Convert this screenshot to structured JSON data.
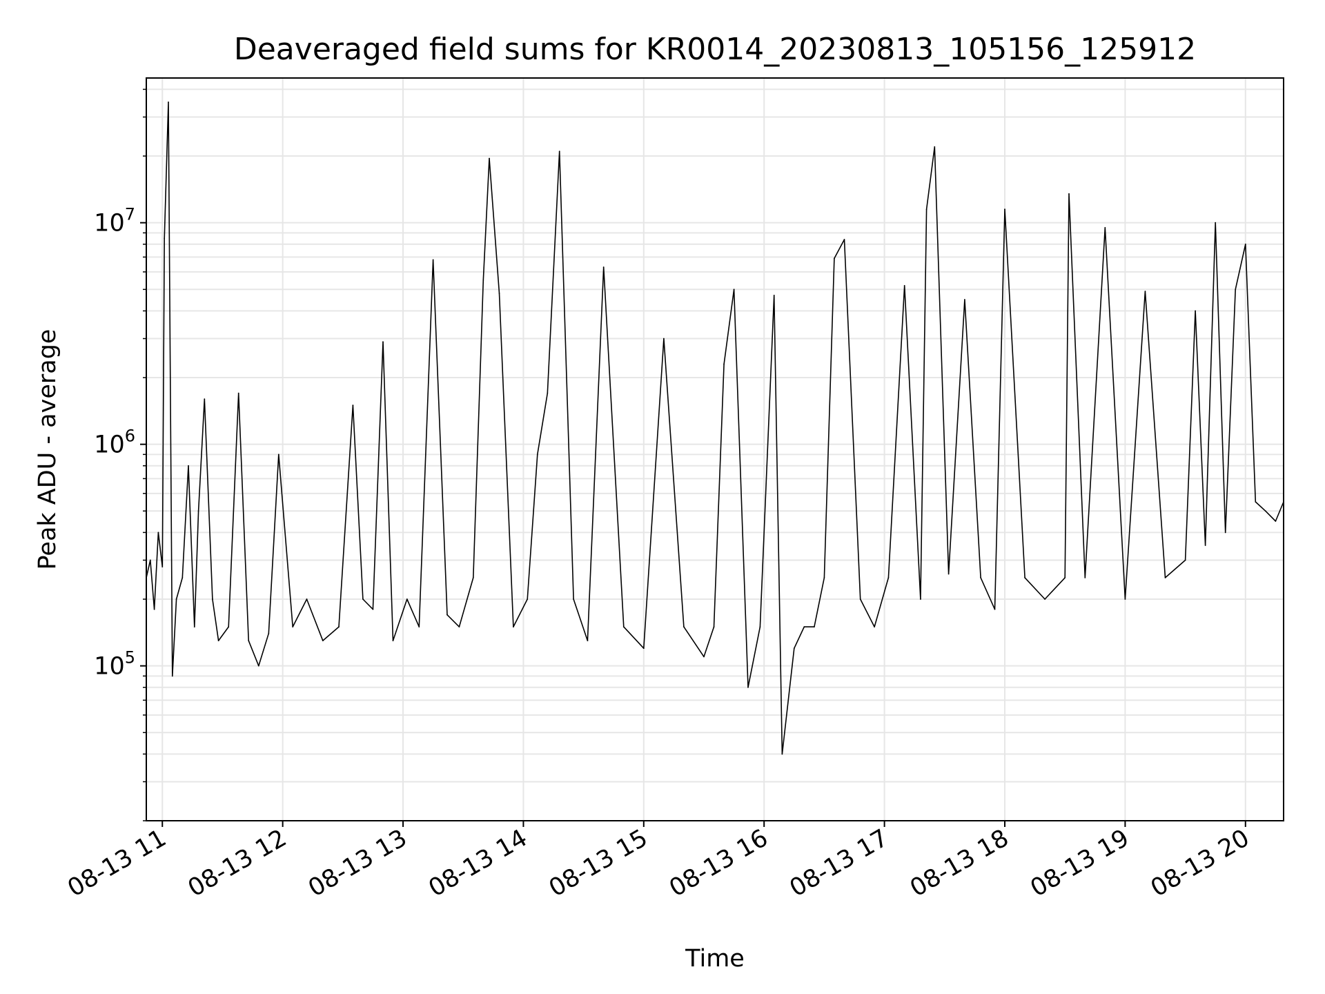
{
  "chart_data": {
    "type": "line",
    "title": "Deaveraged field sums for KR0014_20230813_105156_125912",
    "xlabel": "Time",
    "ylabel": "Peak ADU - average",
    "yscale": "log",
    "grid": true,
    "legend": "none",
    "line_color": "#000000",
    "grid_color": "#e6e6e6",
    "xlim": [
      "2023-08-13 10:52",
      "2023-08-13 20:19"
    ],
    "ylim": [
      20000,
      45000000
    ],
    "x_ticks": [
      "2023-08-13 11:00",
      "2023-08-13 12:00",
      "2023-08-13 13:00",
      "2023-08-13 14:00",
      "2023-08-13 15:00",
      "2023-08-13 16:00",
      "2023-08-13 17:00",
      "2023-08-13 18:00",
      "2023-08-13 19:00",
      "2023-08-13 20:00"
    ],
    "x_tick_labels": [
      "08-13 11",
      "08-13 12",
      "08-13 13",
      "08-13 14",
      "08-13 15",
      "08-13 16",
      "08-13 17",
      "08-13 18",
      "08-13 19",
      "08-13 20"
    ],
    "y_ticks": [
      {
        "value": 100000,
        "base": "10",
        "exp": "5"
      },
      {
        "value": 1000000,
        "base": "10",
        "exp": "6"
      },
      {
        "value": 10000000,
        "base": "10",
        "exp": "7"
      }
    ],
    "series": [
      {
        "x": [
          "2023-08-13 10:52",
          "2023-08-13 10:54",
          "2023-08-13 10:56",
          "2023-08-13 10:58",
          "2023-08-13 11:00",
          "2023-08-13 11:01",
          "2023-08-13 11:03",
          "2023-08-13 11:05",
          "2023-08-13 11:07",
          "2023-08-13 11:10",
          "2023-08-13 11:13",
          "2023-08-13 11:16",
          "2023-08-13 11:18",
          "2023-08-13 11:21",
          "2023-08-13 11:25",
          "2023-08-13 11:28",
          "2023-08-13 11:33",
          "2023-08-13 11:38",
          "2023-08-13 11:43",
          "2023-08-13 11:48",
          "2023-08-13 11:53",
          "2023-08-13 11:58",
          "2023-08-13 12:05",
          "2023-08-13 12:12",
          "2023-08-13 12:20",
          "2023-08-13 12:28",
          "2023-08-13 12:35",
          "2023-08-13 12:40",
          "2023-08-13 12:45",
          "2023-08-13 12:50",
          "2023-08-13 12:55",
          "2023-08-13 13:02",
          "2023-08-13 13:08",
          "2023-08-13 13:15",
          "2023-08-13 13:22",
          "2023-08-13 13:28",
          "2023-08-13 13:35",
          "2023-08-13 13:40",
          "2023-08-13 13:43",
          "2023-08-13 13:48",
          "2023-08-13 13:55",
          "2023-08-13 14:02",
          "2023-08-13 14:07",
          "2023-08-13 14:12",
          "2023-08-13 14:18",
          "2023-08-13 14:25",
          "2023-08-13 14:32",
          "2023-08-13 14:40",
          "2023-08-13 14:50",
          "2023-08-13 15:00",
          "2023-08-13 15:10",
          "2023-08-13 15:20",
          "2023-08-13 15:30",
          "2023-08-13 15:35",
          "2023-08-13 15:40",
          "2023-08-13 15:45",
          "2023-08-13 15:52",
          "2023-08-13 15:58",
          "2023-08-13 16:05",
          "2023-08-13 16:09",
          "2023-08-13 16:15",
          "2023-08-13 16:20",
          "2023-08-13 16:25",
          "2023-08-13 16:30",
          "2023-08-13 16:35",
          "2023-08-13 16:40",
          "2023-08-13 16:48",
          "2023-08-13 16:55",
          "2023-08-13 17:02",
          "2023-08-13 17:10",
          "2023-08-13 17:18",
          "2023-08-13 17:21",
          "2023-08-13 17:25",
          "2023-08-13 17:32",
          "2023-08-13 17:40",
          "2023-08-13 17:48",
          "2023-08-13 17:55",
          "2023-08-13 18:00",
          "2023-08-13 18:10",
          "2023-08-13 18:20",
          "2023-08-13 18:30",
          "2023-08-13 18:32",
          "2023-08-13 18:40",
          "2023-08-13 18:50",
          "2023-08-13 19:00",
          "2023-08-13 19:10",
          "2023-08-13 19:20",
          "2023-08-13 19:30",
          "2023-08-13 19:35",
          "2023-08-13 19:40",
          "2023-08-13 19:45",
          "2023-08-13 19:50",
          "2023-08-13 19:55",
          "2023-08-13 20:00",
          "2023-08-13 20:05",
          "2023-08-13 20:10",
          "2023-08-13 20:15",
          "2023-08-13 20:19"
        ],
        "y": [
          250000,
          300000,
          180000,
          400000,
          280000,
          8500000,
          35000000,
          90000,
          200000,
          250000,
          800000,
          150000,
          500000,
          1600000,
          200000,
          130000,
          150000,
          1700000,
          130000,
          100000,
          140000,
          900000,
          150000,
          200000,
          130000,
          150000,
          1500000,
          200000,
          180000,
          2900000,
          130000,
          200000,
          150000,
          6800000,
          170000,
          150000,
          250000,
          5500000,
          19500000,
          4800000,
          150000,
          200000,
          900000,
          1700000,
          21000000,
          200000,
          130000,
          6300000,
          150000,
          120000,
          3000000,
          150000,
          110000,
          150000,
          2300000,
          5000000,
          80000,
          150000,
          4700000,
          40000,
          120000,
          150000,
          150000,
          250000,
          6900000,
          8400000,
          200000,
          150000,
          250000,
          5200000,
          200000,
          11500000,
          22000000,
          260000,
          4500000,
          250000,
          180000,
          11500000,
          250000,
          200000,
          250000,
          13500000,
          250000,
          9500000,
          200000,
          4900000,
          250000,
          300000,
          4000000,
          350000,
          10000000,
          400000,
          5000000,
          8000000,
          550000,
          500000,
          450000,
          550000
        ]
      }
    ]
  }
}
